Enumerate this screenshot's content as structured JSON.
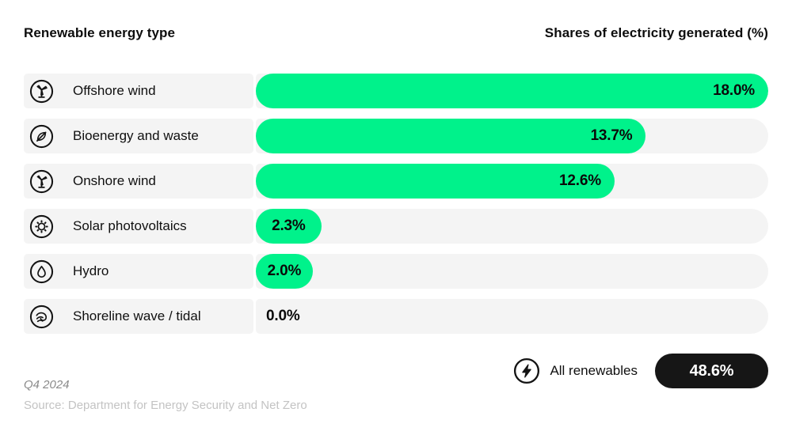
{
  "header": {
    "left_title": "Renewable energy type",
    "right_title": "Shares of electricity generated (%)"
  },
  "chart_data": {
    "type": "bar",
    "orientation": "horizontal",
    "title": "Renewable energy type",
    "xlabel": "Shares of electricity generated (%)",
    "xlim": [
      0,
      18
    ],
    "grid": false,
    "categories": [
      "Offshore wind",
      "Bioenergy and waste",
      "Onshore wind",
      "Solar photovoltaics",
      "Hydro",
      "Shoreline wave / tidal"
    ],
    "values": [
      18.0,
      13.7,
      12.6,
      2.3,
      2.0,
      0.0
    ],
    "value_labels": [
      "18.0%",
      "13.7%",
      "12.6%",
      "2.3%",
      "2.0%",
      "0.0%"
    ],
    "icons": [
      "offshore-wind-turbine-icon",
      "bioenergy-leaf-icon",
      "onshore-wind-turbine-icon",
      "solar-sun-icon",
      "hydro-droplet-icon",
      "wave-tidal-icon"
    ],
    "total": {
      "label": "All renewables",
      "value": 48.6,
      "value_label": "48.6%",
      "icon": "lightning-bolt-icon"
    }
  },
  "footer": {
    "period": "Q4 2024",
    "source": "Source: Department for Energy Security and Net Zero"
  },
  "colors": {
    "bar_green": "#00F28B",
    "track_gray": "#f4f4f4",
    "pill_black": "#161616",
    "period_gray": "#8a8a8a",
    "source_gray": "#c3c3c3"
  }
}
